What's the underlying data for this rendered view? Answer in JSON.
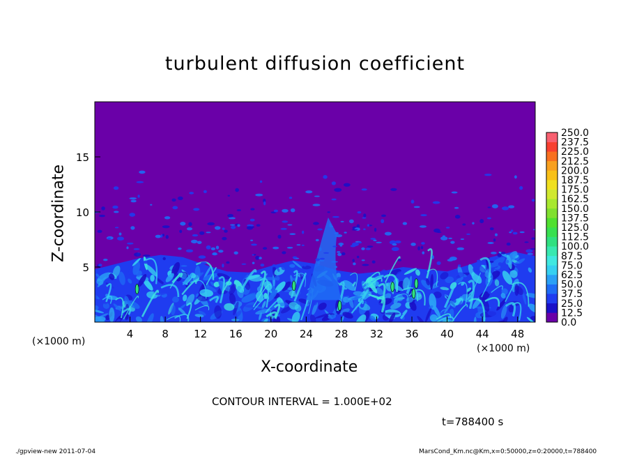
{
  "chart_data": {
    "type": "heatmap",
    "title": "turbulent diffusion coefficient",
    "xlabel": "X-coordinate",
    "ylabel": "Z-coordinate",
    "x_unit_left": "(×1000 m)",
    "x_unit_right": "(×1000 m)",
    "xlim": [
      0,
      50
    ],
    "ylim": [
      0,
      20
    ],
    "x_ticks": [
      4,
      8,
      12,
      16,
      20,
      24,
      28,
      32,
      36,
      40,
      44,
      48
    ],
    "x_tick_labels": [
      "4",
      "8",
      "12",
      "16",
      "20",
      "24",
      "28",
      "32",
      "36",
      "40",
      "44",
      "48"
    ],
    "y_ticks": [
      5,
      10,
      15
    ],
    "y_tick_labels": [
      "5",
      "10",
      "15"
    ],
    "background_color": "#6a00a8",
    "colorbar": {
      "levels": [
        "0.0",
        "12.5",
        "25.0",
        "37.5",
        "50.0",
        "62.5",
        "75.0",
        "87.5",
        "100.0",
        "112.5",
        "125.0",
        "137.5",
        "150.0",
        "162.5",
        "175.0",
        "187.5",
        "200.0",
        "212.5",
        "225.0",
        "237.5",
        "250.0"
      ],
      "colors": [
        "#6a00a8",
        "#1a10c8",
        "#1f3cf0",
        "#1e6cf5",
        "#2aa0f5",
        "#36d0f0",
        "#40e8e0",
        "#38e8b0",
        "#30e080",
        "#38e050",
        "#50e030",
        "#80e030",
        "#a8e830",
        "#d0e830",
        "#f0e020",
        "#f8c018",
        "#f8a020",
        "#f87020",
        "#f84030",
        "#f86070"
      ]
    },
    "turbulent_layer": {
      "top_z": [
        4.8,
        5.3,
        5.8,
        6.1,
        5.9,
        5.2,
        4.6,
        4.5,
        5.1,
        5.6,
        5.3,
        4.7,
        4.4,
        4.6,
        5.0,
        4.8,
        4.6,
        5.2,
        5.9,
        6.4,
        6.0
      ]
    },
    "annotations": [
      "CONTOUR INTERVAL = 1.000E+02",
      "t=788400 s"
    ]
  },
  "footer": {
    "left": "./gpview-new   2011-07-04",
    "right": "MarsCond_Km.nc@Km,x=0:50000,z=0:20000,t=788400"
  }
}
